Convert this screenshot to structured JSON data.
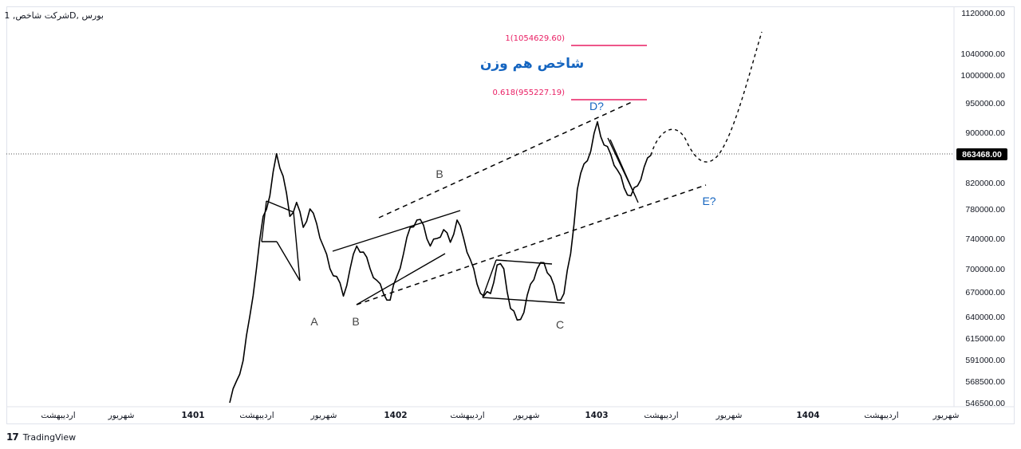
{
  "symbol": "بورس ,Dشرکت شاخص, 1",
  "watermark_logo_text": "TradingView",
  "colors": {
    "price_line": "#000000",
    "fib_line": "#e91e63",
    "fib_text": "#e91e63",
    "title_text": "#1565c0",
    "wave_label_blue": "#1565c0",
    "wave_label_gray": "#444444",
    "current_price_bg": "#000000",
    "current_price_text": "#ffffff"
  },
  "annotations": {
    "title": "شاخص هم وزن",
    "fib_top": "1(1054629.60)",
    "fib_bottom": "0.618(955227.19)",
    "wave_labels": [
      "A",
      "B",
      "B",
      "C",
      "D?",
      "E?"
    ]
  },
  "chart_data": {
    "type": "line",
    "title": "",
    "xlabel": "",
    "ylabel": "",
    "x_ticks": [
      "اردیبهشت",
      "شهریور",
      "1401",
      "اردیبهشت",
      "شهریور",
      "1402",
      "اردیبهشت",
      "شهریور",
      "1403",
      "اردیبهشت",
      "شهریور",
      "1404",
      "اردیبهشت",
      "شهریور"
    ],
    "y_ticks": [
      "1120000.00",
      "1040000.00",
      "1000000.00",
      "950000.00",
      "900000.00",
      "820000.00",
      "780000.00",
      "740000.00",
      "700000.00",
      "670000.00",
      "640000.00",
      "615000.00",
      "591000.00",
      "568500.00",
      "546500.00"
    ],
    "y_scale": "log",
    "ylim": [
      546500,
      1120000
    ],
    "current_price": "863468.00",
    "series": [
      {
        "values": [
          546500,
          568500,
          590000,
          640000,
          700000,
          770000,
          800000,
          866000,
          830000,
          770000,
          790000,
          755000,
          780000,
          760000,
          730000,
          700000,
          690000,
          665000,
          700000,
          730000,
          722000,
          700000,
          685000,
          668000,
          660000,
          690000,
          720000,
          755000,
          765000,
          758000,
          730000,
          740000,
          752000,
          735000,
          765000,
          740000,
          712000,
          680000,
          665000,
          668000,
          705000,
          700000,
          650000,
          636000,
          645000,
          680000,
          700000,
          708000,
          690000,
          660000,
          668000,
          720000,
          810000,
          850000,
          870000,
          918000,
          880000,
          865000,
          840000,
          812000,
          800000,
          815000,
          845000,
          863468
        ]
      }
    ],
    "projection": [
      863468,
      900000,
      860000,
      1120000
    ]
  }
}
